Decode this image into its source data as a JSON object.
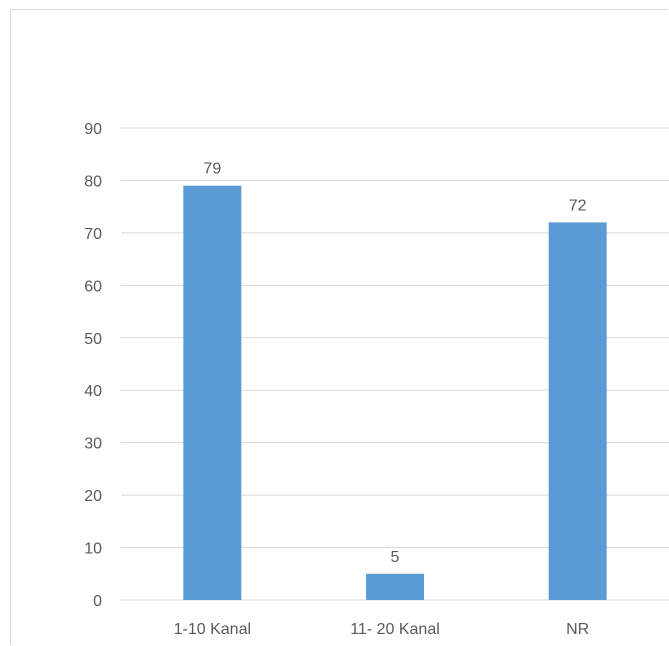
{
  "chart_data": {
    "type": "bar",
    "title": "",
    "xlabel": "",
    "ylabel": "",
    "categories": [
      "1-10 Kanal",
      "11- 20 Kanal",
      "NR"
    ],
    "values": [
      79,
      5,
      72
    ],
    "ylim": [
      0,
      90
    ],
    "yticks": [
      0,
      10,
      20,
      30,
      40,
      50,
      60,
      70,
      80,
      90
    ],
    "grid": true,
    "legend": "none",
    "bar_color": "#5b9bd5",
    "gridline_color": "#d9d9d9",
    "text_color": "#595959"
  }
}
